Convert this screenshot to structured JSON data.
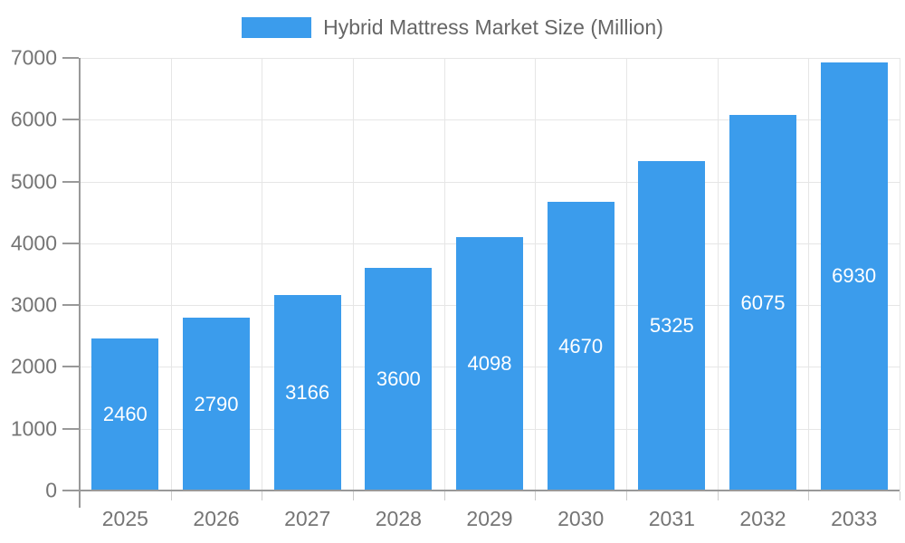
{
  "page": {
    "background": "#ffffff"
  },
  "legend": {
    "label": "Hybrid Mattress Market Size (Million)"
  },
  "chart_data": {
    "type": "bar",
    "title": "Hybrid Mattress Market Size (Million)",
    "categories": [
      "2025",
      "2026",
      "2027",
      "2028",
      "2029",
      "2030",
      "2031",
      "2032",
      "2033"
    ],
    "values": [
      2460,
      2790,
      3166,
      3600,
      4098,
      4670,
      5325,
      6075,
      6930
    ],
    "value_labels": [
      "2460",
      "2790",
      "3166",
      "3600",
      "4098",
      "4670",
      "5325",
      "6075",
      "6930"
    ],
    "xlabel": "",
    "ylabel": "",
    "ylim": [
      0,
      7000
    ],
    "ytick_step": 1000,
    "yticks": [
      0,
      1000,
      2000,
      3000,
      4000,
      5000,
      6000,
      7000
    ],
    "grid": true,
    "legend_position": "top",
    "value_label_position": "center-of-bar",
    "colors": {
      "bar": "#3B9CEC",
      "value_label": "#ffffff",
      "axis": "#999999",
      "grid": "#e6e6e6",
      "x_tick_mark": "#cccccc",
      "tick_text": "#757575",
      "legend_text": "#666666"
    }
  }
}
